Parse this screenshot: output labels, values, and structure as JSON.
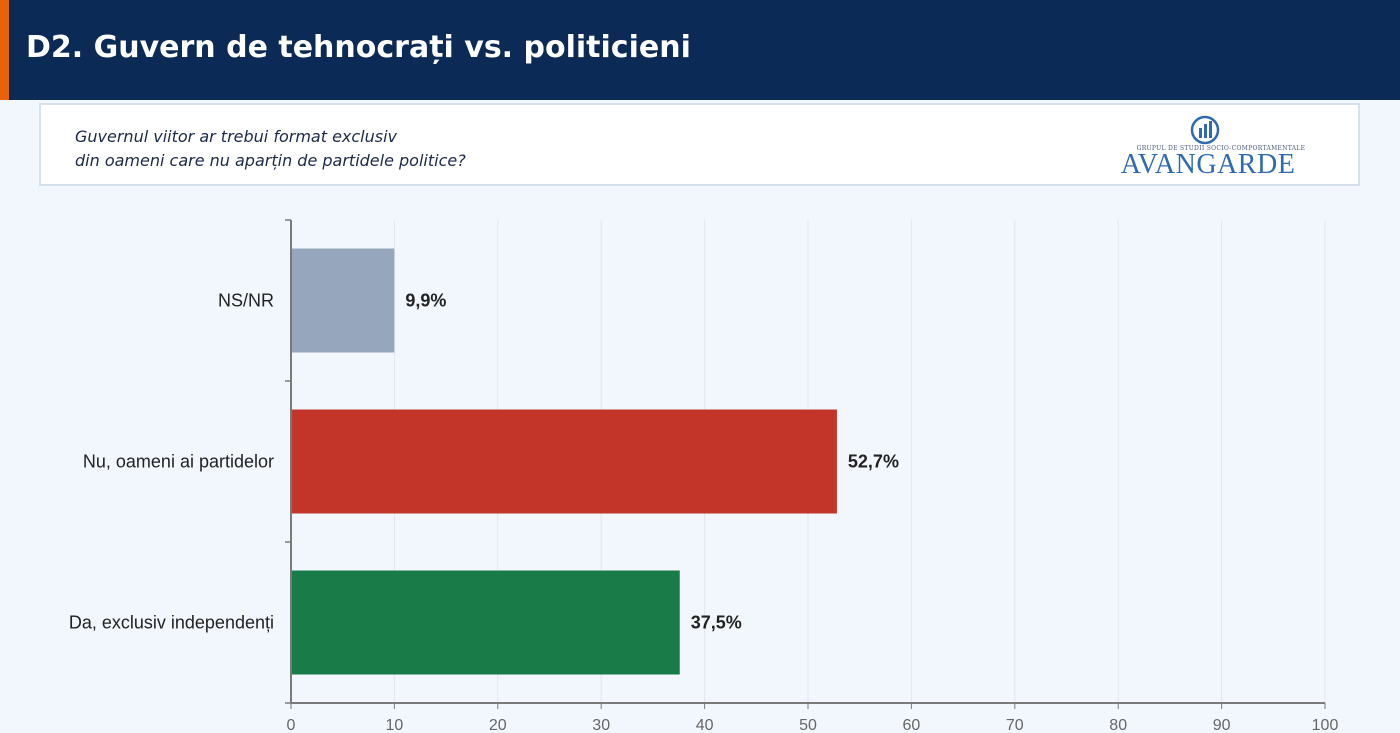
{
  "header": {
    "title": "D2. Guvern de tehnocrați vs. politicieni"
  },
  "question": {
    "line1": "Guvernul viitor ar trebui format exclusiv",
    "line2": "din oameni care nu aparțin de partidele politice?"
  },
  "logo": {
    "subtitle": "GRUPUL DE STUDII SOCIO-COMPORTAMENTALE",
    "name": "AVANGARDE"
  },
  "colors": {
    "header_bg": "#0b2a55",
    "accent": "#e8620c"
  },
  "chart_data": {
    "type": "bar",
    "orientation": "horizontal",
    "categories": [
      "NS/NR",
      "Nu, oameni ai partidelor",
      "Da, exclusiv independenți"
    ],
    "values": [
      9.9,
      52.7,
      37.5
    ],
    "value_labels": [
      "9,9%",
      "52,7%",
      "37,5%"
    ],
    "colors": [
      "#96a6bd",
      "#c23528",
      "#187b48"
    ],
    "xlim": [
      0,
      100
    ],
    "xticks": [
      "0",
      "10",
      "20",
      "30",
      "40",
      "50",
      "60",
      "70",
      "80",
      "90",
      "100"
    ],
    "grid": true
  }
}
